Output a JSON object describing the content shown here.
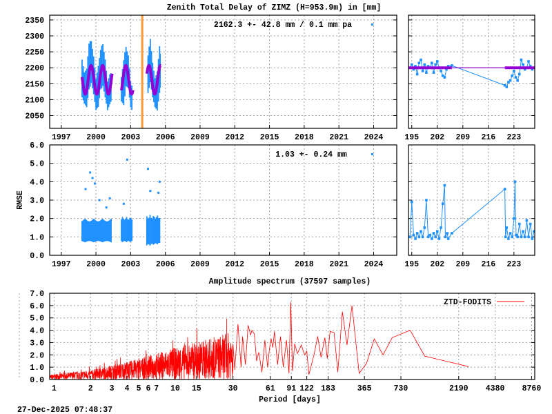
{
  "title": "Zenith Total Delay of ZIMZ (H=953.9m) in [mm]",
  "timestamp": "27-Dec-2025 07:48:37",
  "colors": {
    "data": "#1e90ff",
    "model": "#9400d3",
    "event": "#ff9933",
    "spectrum": "#ff0000",
    "grid": "#a0a0a0"
  },
  "chart_data": [
    {
      "type": "scatter",
      "panel": "ztd-long",
      "annotation": "2162.3 +-  42.8 mm /  0.1 mm pa",
      "xlim": [
        1996,
        2026
      ],
      "ylim": [
        2010,
        2365
      ],
      "xticks": [
        1997,
        2000,
        2003,
        2006,
        2009,
        2012,
        2015,
        2018,
        2021,
        2024
      ],
      "yticks": [
        2050,
        2100,
        2150,
        2200,
        2250,
        2300,
        2350
      ],
      "grid": true,
      "event_line_year": 2004.0,
      "data_envelope": [
        [
          [
            1998.8,
            2100,
            2240
          ],
          [
            1999.0,
            2080,
            2200
          ],
          [
            1999.2,
            2070,
            2210
          ],
          [
            1999.4,
            2130,
            2280
          ],
          [
            1999.6,
            2150,
            2290
          ],
          [
            1999.8,
            2110,
            2250
          ],
          [
            2000.0,
            2060,
            2180
          ],
          [
            2000.2,
            2070,
            2220
          ],
          [
            2000.4,
            2130,
            2260
          ],
          [
            2000.6,
            2140,
            2280
          ],
          [
            2000.8,
            2100,
            2240
          ],
          [
            2001.0,
            2060,
            2170
          ],
          [
            2001.2,
            2080,
            2190
          ],
          [
            2001.4,
            2100,
            2190
          ]
        ],
        [
          [
            2002.2,
            2090,
            2180
          ],
          [
            2002.4,
            2080,
            2230
          ],
          [
            2002.6,
            2140,
            2270
          ],
          [
            2002.8,
            2130,
            2250
          ],
          [
            2003.0,
            2070,
            2170
          ],
          [
            2003.2,
            2055,
            2140
          ]
        ],
        [
          [
            2004.5,
            2120,
            2240
          ],
          [
            2004.7,
            2150,
            2300
          ],
          [
            2004.9,
            2100,
            2230
          ],
          [
            2005.1,
            2070,
            2180
          ],
          [
            2005.3,
            2060,
            2200
          ],
          [
            2005.5,
            2120,
            2270
          ],
          [
            2005.6,
            2140,
            2250
          ]
        ]
      ],
      "model_segments": [
        [
          1998.8,
          2001.4
        ],
        [
          2002.2,
          2003.2
        ],
        [
          2004.4,
          2005.6
        ]
      ],
      "model": {
        "mean": 2162.3,
        "amplitude": 45,
        "peak_fraction_of_year": 0.58
      }
    },
    {
      "type": "scatter",
      "panel": "ztd-recent",
      "xlim": [
        194.1,
        228.7
      ],
      "ylim": [
        2010,
        2365
      ],
      "xticks": [
        195,
        202,
        209,
        216,
        223
      ],
      "yticks": [
        2050,
        2100,
        2150,
        2200,
        2250,
        2300,
        2350
      ],
      "grid": true,
      "points": [
        [
          194.5,
          2200
        ],
        [
          195,
          2210
        ],
        [
          195.5,
          2195
        ],
        [
          196,
          2205
        ],
        [
          196.5,
          2180
        ],
        [
          197,
          2215
        ],
        [
          197.5,
          2225
        ],
        [
          198,
          2190
        ],
        [
          198.5,
          2210
        ],
        [
          199,
          2185
        ],
        [
          199.5,
          2205
        ],
        [
          200,
          2200
        ],
        [
          200.5,
          2215
        ],
        [
          201,
          2185
        ],
        [
          201.5,
          2210
        ],
        [
          202,
          2220
        ],
        [
          202.5,
          2200
        ],
        [
          203,
          2190
        ],
        [
          203.5,
          2175
        ],
        [
          204,
          2170
        ],
        [
          204.5,
          2195
        ],
        [
          205,
          2205
        ],
        [
          206,
          2207
        ],
        [
          220.5,
          2145
        ],
        [
          221,
          2140
        ],
        [
          221.5,
          2155
        ],
        [
          222,
          2160
        ],
        [
          222.5,
          2175
        ],
        [
          223,
          2190
        ],
        [
          223.5,
          2170
        ],
        [
          224,
          2160
        ],
        [
          224.5,
          2180
        ],
        [
          225,
          2225
        ],
        [
          225.5,
          2210
        ],
        [
          226,
          2195
        ],
        [
          226.5,
          2200
        ],
        [
          227,
          2220
        ],
        [
          227.5,
          2205
        ],
        [
          228,
          2195
        ],
        [
          228.5,
          2200
        ]
      ],
      "model_segments": [
        [
          194.1,
          206
        ],
        [
          220.5,
          228.7
        ]
      ],
      "model_value": 2200
    },
    {
      "type": "scatter",
      "panel": "rmse-long",
      "ylabel": "RMSE",
      "annotation": "1.03 +-  0.24 mm",
      "xlim": [
        1996,
        2026
      ],
      "ylim": [
        0,
        6
      ],
      "xticks": [
        1997,
        2000,
        2003,
        2006,
        2009,
        2012,
        2015,
        2018,
        2021,
        2024
      ],
      "yticks": [
        "0.0",
        "1.0",
        "2.0",
        "3.0",
        "4.0",
        "5.0",
        "6.0"
      ],
      "grid": true,
      "data_envelope": [
        [
          [
            1998.8,
            0.7,
            2.0
          ],
          [
            2001.4,
            0.7,
            2.0
          ]
        ],
        [
          [
            2002.2,
            0.7,
            2.1
          ],
          [
            2003.2,
            0.7,
            2.1
          ]
        ],
        [
          [
            2004.4,
            0.5,
            2.2
          ],
          [
            2005.6,
            0.6,
            2.2
          ]
        ]
      ],
      "spikes": [
        [
          1999.1,
          3.6
        ],
        [
          1999.5,
          4.5
        ],
        [
          1999.7,
          4.2
        ],
        [
          1999.9,
          3.9
        ],
        [
          2000.3,
          3.0
        ],
        [
          2000.9,
          2.6
        ],
        [
          2001.2,
          3.1
        ],
        [
          2002.4,
          2.8
        ],
        [
          2002.7,
          5.2
        ],
        [
          2004.5,
          4.7
        ],
        [
          2004.7,
          3.5
        ],
        [
          2005.4,
          3.4
        ],
        [
          2005.5,
          4.0
        ]
      ]
    },
    {
      "type": "scatter",
      "panel": "rmse-recent",
      "xlim": [
        194.1,
        228.7
      ],
      "ylim": [
        0,
        6
      ],
      "xticks": [
        195,
        202,
        209,
        216,
        223
      ],
      "yticks": [
        "0.0",
        "1.0",
        "2.0",
        "3.0",
        "4.0",
        "5.0",
        "6.0"
      ],
      "grid": true,
      "points": [
        [
          194.5,
          1.0
        ],
        [
          195,
          2.9
        ],
        [
          195.5,
          1.1
        ],
        [
          196,
          0.9
        ],
        [
          196.5,
          1.2
        ],
        [
          197,
          1.0
        ],
        [
          197.5,
          1.3
        ],
        [
          198,
          1.0
        ],
        [
          198.5,
          1.5
        ],
        [
          199,
          3.0
        ],
        [
          199.5,
          1.0
        ],
        [
          200,
          1.1
        ],
        [
          200.5,
          0.9
        ],
        [
          201,
          1.2
        ],
        [
          201.5,
          1.0
        ],
        [
          202,
          1.3
        ],
        [
          202.5,
          0.9
        ],
        [
          203,
          1.5
        ],
        [
          203.5,
          2.8
        ],
        [
          204,
          3.8
        ],
        [
          204.2,
          1.0
        ],
        [
          204.7,
          1.2
        ],
        [
          205,
          0.9
        ],
        [
          206,
          1.2
        ],
        [
          220.5,
          3.6
        ],
        [
          220.7,
          1.0
        ],
        [
          221,
          1.5
        ],
        [
          221.5,
          0.9
        ],
        [
          222,
          1.2
        ],
        [
          222.5,
          1.0
        ],
        [
          223,
          2.0
        ],
        [
          223.3,
          4.0
        ],
        [
          223.6,
          1.1
        ],
        [
          224,
          1.0
        ],
        [
          224.5,
          1.7
        ],
        [
          225,
          1.0
        ],
        [
          225.5,
          1.3
        ],
        [
          226,
          1.0
        ],
        [
          226.5,
          1.9
        ],
        [
          227,
          1.0
        ],
        [
          227.5,
          1.7
        ],
        [
          228,
          0.9
        ],
        [
          228.5,
          1.3
        ]
      ]
    },
    {
      "type": "line",
      "panel": "spectrum",
      "title": "Amplitude spectrum (37597 samples)",
      "xlabel": "Period [days]",
      "legend": "ZTD-FODITS",
      "legend_position": "top-right",
      "xscale": "log",
      "xlim": [
        0.92,
        9300
      ],
      "ylim": [
        0,
        7
      ],
      "xticks": [
        1,
        2,
        3,
        4,
        5,
        6,
        7,
        10,
        15,
        30,
        61,
        91,
        122,
        183,
        365,
        730,
        2190,
        4380,
        8760
      ],
      "yticks": [
        "0.0",
        "1.0",
        "2.0",
        "3.0",
        "4.0",
        "5.0",
        "6.0",
        "7.0"
      ],
      "grid": true,
      "noise_envelope": [
        [
          0.92,
          0.3
        ],
        [
          2,
          0.6
        ],
        [
          3,
          0.9
        ],
        [
          5,
          1.3
        ],
        [
          10,
          2.0
        ],
        [
          20,
          2.6
        ],
        [
          30,
          3.0
        ]
      ],
      "points": [
        [
          30,
          2.9
        ],
        [
          31,
          0.8
        ],
        [
          33,
          4.5
        ],
        [
          35,
          1.0
        ],
        [
          36,
          3.5
        ],
        [
          38,
          1.2
        ],
        [
          40,
          4.4
        ],
        [
          42,
          3.6
        ],
        [
          43,
          4.0
        ],
        [
          45,
          3.7
        ],
        [
          47,
          1.5
        ],
        [
          49,
          2.2
        ],
        [
          52,
          0.6
        ],
        [
          55,
          3.2
        ],
        [
          58,
          1.0
        ],
        [
          60,
          2.5
        ],
        [
          62,
          3.3
        ],
        [
          64,
          2.6
        ],
        [
          66,
          3.9
        ],
        [
          70,
          1.2
        ],
        [
          74,
          3.5
        ],
        [
          78,
          1.0
        ],
        [
          83,
          3.2
        ],
        [
          87,
          0.5
        ],
        [
          90,
          6.3
        ],
        [
          93,
          0.7
        ],
        [
          97,
          2.9
        ],
        [
          102,
          2.1
        ],
        [
          110,
          2.8
        ],
        [
          117,
          2.0
        ],
        [
          122,
          2.3
        ],
        [
          127,
          0.4
        ],
        [
          140,
          2.0
        ],
        [
          150,
          3.5
        ],
        [
          160,
          1.8
        ],
        [
          172,
          3.4
        ],
        [
          180,
          1.7
        ],
        [
          190,
          3.9
        ],
        [
          205,
          3.8
        ],
        [
          220,
          0.6
        ],
        [
          240,
          5.5
        ],
        [
          262,
          2.8
        ],
        [
          288,
          6.0
        ],
        [
          330,
          0.5
        ],
        [
          380,
          1.3
        ],
        [
          440,
          3.3
        ],
        [
          520,
          2.0
        ],
        [
          620,
          3.4
        ],
        [
          870,
          4.0
        ],
        [
          1150,
          1.9
        ],
        [
          2640,
          1.05
        ]
      ]
    }
  ]
}
